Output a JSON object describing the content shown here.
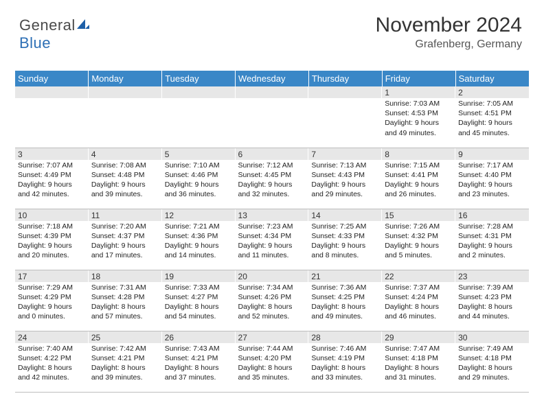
{
  "brand": {
    "name_part1": "General",
    "name_part2": "Blue",
    "icon_color": "#1d5fa8"
  },
  "header": {
    "month_title": "November 2024",
    "location": "Grafenberg, Germany"
  },
  "calendar": {
    "day_headers": [
      "Sunday",
      "Monday",
      "Tuesday",
      "Wednesday",
      "Thursday",
      "Friday",
      "Saturday"
    ],
    "header_bg": "#3a87c7",
    "header_fg": "#ffffff",
    "daynum_bg": "#e7e7e7",
    "border_color": "#bdbdbd",
    "rows": [
      [
        {
          "day": "",
          "sunrise": "",
          "sunset": "",
          "daylight": ""
        },
        {
          "day": "",
          "sunrise": "",
          "sunset": "",
          "daylight": ""
        },
        {
          "day": "",
          "sunrise": "",
          "sunset": "",
          "daylight": ""
        },
        {
          "day": "",
          "sunrise": "",
          "sunset": "",
          "daylight": ""
        },
        {
          "day": "",
          "sunrise": "",
          "sunset": "",
          "daylight": ""
        },
        {
          "day": "1",
          "sunrise": "Sunrise: 7:03 AM",
          "sunset": "Sunset: 4:53 PM",
          "daylight": "Daylight: 9 hours and 49 minutes."
        },
        {
          "day": "2",
          "sunrise": "Sunrise: 7:05 AM",
          "sunset": "Sunset: 4:51 PM",
          "daylight": "Daylight: 9 hours and 45 minutes."
        }
      ],
      [
        {
          "day": "3",
          "sunrise": "Sunrise: 7:07 AM",
          "sunset": "Sunset: 4:49 PM",
          "daylight": "Daylight: 9 hours and 42 minutes."
        },
        {
          "day": "4",
          "sunrise": "Sunrise: 7:08 AM",
          "sunset": "Sunset: 4:48 PM",
          "daylight": "Daylight: 9 hours and 39 minutes."
        },
        {
          "day": "5",
          "sunrise": "Sunrise: 7:10 AM",
          "sunset": "Sunset: 4:46 PM",
          "daylight": "Daylight: 9 hours and 36 minutes."
        },
        {
          "day": "6",
          "sunrise": "Sunrise: 7:12 AM",
          "sunset": "Sunset: 4:45 PM",
          "daylight": "Daylight: 9 hours and 32 minutes."
        },
        {
          "day": "7",
          "sunrise": "Sunrise: 7:13 AM",
          "sunset": "Sunset: 4:43 PM",
          "daylight": "Daylight: 9 hours and 29 minutes."
        },
        {
          "day": "8",
          "sunrise": "Sunrise: 7:15 AM",
          "sunset": "Sunset: 4:41 PM",
          "daylight": "Daylight: 9 hours and 26 minutes."
        },
        {
          "day": "9",
          "sunrise": "Sunrise: 7:17 AM",
          "sunset": "Sunset: 4:40 PM",
          "daylight": "Daylight: 9 hours and 23 minutes."
        }
      ],
      [
        {
          "day": "10",
          "sunrise": "Sunrise: 7:18 AM",
          "sunset": "Sunset: 4:39 PM",
          "daylight": "Daylight: 9 hours and 20 minutes."
        },
        {
          "day": "11",
          "sunrise": "Sunrise: 7:20 AM",
          "sunset": "Sunset: 4:37 PM",
          "daylight": "Daylight: 9 hours and 17 minutes."
        },
        {
          "day": "12",
          "sunrise": "Sunrise: 7:21 AM",
          "sunset": "Sunset: 4:36 PM",
          "daylight": "Daylight: 9 hours and 14 minutes."
        },
        {
          "day": "13",
          "sunrise": "Sunrise: 7:23 AM",
          "sunset": "Sunset: 4:34 PM",
          "daylight": "Daylight: 9 hours and 11 minutes."
        },
        {
          "day": "14",
          "sunrise": "Sunrise: 7:25 AM",
          "sunset": "Sunset: 4:33 PM",
          "daylight": "Daylight: 9 hours and 8 minutes."
        },
        {
          "day": "15",
          "sunrise": "Sunrise: 7:26 AM",
          "sunset": "Sunset: 4:32 PM",
          "daylight": "Daylight: 9 hours and 5 minutes."
        },
        {
          "day": "16",
          "sunrise": "Sunrise: 7:28 AM",
          "sunset": "Sunset: 4:31 PM",
          "daylight": "Daylight: 9 hours and 2 minutes."
        }
      ],
      [
        {
          "day": "17",
          "sunrise": "Sunrise: 7:29 AM",
          "sunset": "Sunset: 4:29 PM",
          "daylight": "Daylight: 9 hours and 0 minutes."
        },
        {
          "day": "18",
          "sunrise": "Sunrise: 7:31 AM",
          "sunset": "Sunset: 4:28 PM",
          "daylight": "Daylight: 8 hours and 57 minutes."
        },
        {
          "day": "19",
          "sunrise": "Sunrise: 7:33 AM",
          "sunset": "Sunset: 4:27 PM",
          "daylight": "Daylight: 8 hours and 54 minutes."
        },
        {
          "day": "20",
          "sunrise": "Sunrise: 7:34 AM",
          "sunset": "Sunset: 4:26 PM",
          "daylight": "Daylight: 8 hours and 52 minutes."
        },
        {
          "day": "21",
          "sunrise": "Sunrise: 7:36 AM",
          "sunset": "Sunset: 4:25 PM",
          "daylight": "Daylight: 8 hours and 49 minutes."
        },
        {
          "day": "22",
          "sunrise": "Sunrise: 7:37 AM",
          "sunset": "Sunset: 4:24 PM",
          "daylight": "Daylight: 8 hours and 46 minutes."
        },
        {
          "day": "23",
          "sunrise": "Sunrise: 7:39 AM",
          "sunset": "Sunset: 4:23 PM",
          "daylight": "Daylight: 8 hours and 44 minutes."
        }
      ],
      [
        {
          "day": "24",
          "sunrise": "Sunrise: 7:40 AM",
          "sunset": "Sunset: 4:22 PM",
          "daylight": "Daylight: 8 hours and 42 minutes."
        },
        {
          "day": "25",
          "sunrise": "Sunrise: 7:42 AM",
          "sunset": "Sunset: 4:21 PM",
          "daylight": "Daylight: 8 hours and 39 minutes."
        },
        {
          "day": "26",
          "sunrise": "Sunrise: 7:43 AM",
          "sunset": "Sunset: 4:21 PM",
          "daylight": "Daylight: 8 hours and 37 minutes."
        },
        {
          "day": "27",
          "sunrise": "Sunrise: 7:44 AM",
          "sunset": "Sunset: 4:20 PM",
          "daylight": "Daylight: 8 hours and 35 minutes."
        },
        {
          "day": "28",
          "sunrise": "Sunrise: 7:46 AM",
          "sunset": "Sunset: 4:19 PM",
          "daylight": "Daylight: 8 hours and 33 minutes."
        },
        {
          "day": "29",
          "sunrise": "Sunrise: 7:47 AM",
          "sunset": "Sunset: 4:18 PM",
          "daylight": "Daylight: 8 hours and 31 minutes."
        },
        {
          "day": "30",
          "sunrise": "Sunrise: 7:49 AM",
          "sunset": "Sunset: 4:18 PM",
          "daylight": "Daylight: 8 hours and 29 minutes."
        }
      ]
    ]
  }
}
